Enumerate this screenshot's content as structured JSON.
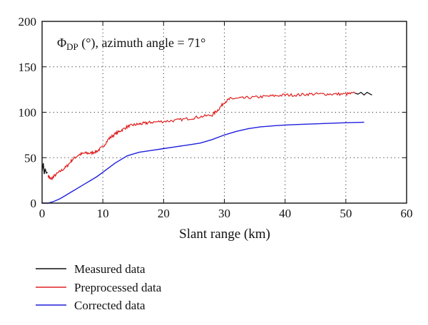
{
  "chart_data": {
    "type": "line",
    "title": "",
    "annotation": {
      "symbol": "Φ",
      "subscript": "DP",
      "rest": " (°), azimuth angle = 71°"
    },
    "xlabel": "Slant range (km)",
    "ylabel": "",
    "xlim": [
      0,
      60
    ],
    "ylim": [
      0,
      200
    ],
    "xticks": [
      "0",
      "10",
      "20",
      "30",
      "40",
      "50",
      "60"
    ],
    "yticks": [
      "0",
      "50",
      "100",
      "150",
      "200"
    ],
    "grid": "dotted",
    "legend_position": "below",
    "series": [
      {
        "name": "Measured data",
        "color": "#111111",
        "x": [
          0.0,
          0.2,
          0.35,
          0.5,
          0.7,
          0.9,
          51.5,
          52.0,
          52.5,
          53.0,
          53.5,
          54.0,
          54.3
        ],
        "y": [
          35,
          44,
          32,
          38,
          33,
          34,
          121,
          120,
          122,
          119,
          122,
          120,
          119
        ]
      },
      {
        "name": "Preprocessed data",
        "color": "#e02020",
        "x": [
          1,
          1.5,
          2,
          3,
          4,
          5,
          6,
          7,
          8,
          9,
          10,
          11,
          12,
          13,
          14,
          15,
          16,
          17,
          18,
          20,
          22,
          24,
          26,
          28,
          29,
          30,
          31,
          32,
          34,
          36,
          38,
          40,
          42,
          44,
          46,
          48,
          50,
          51.5
        ],
        "y": [
          30,
          26,
          30,
          35,
          40,
          48,
          53,
          55,
          55,
          57,
          62,
          71,
          76,
          80,
          84,
          86,
          87,
          88,
          89,
          90,
          91,
          93,
          95,
          97,
          103,
          111,
          115,
          115,
          116,
          117,
          118,
          119,
          119,
          120,
          120,
          120,
          120,
          121
        ]
      },
      {
        "name": "Corrected data",
        "color": "#1f1fdc",
        "x": [
          0,
          1,
          2,
          3,
          4,
          5,
          6,
          7,
          8,
          9,
          10,
          11,
          12,
          13,
          14,
          15,
          16,
          18,
          20,
          22,
          24,
          26,
          28,
          30,
          32,
          34,
          36,
          38,
          40,
          42,
          44,
          46,
          48,
          50,
          53
        ],
        "y": [
          0,
          0,
          2,
          5,
          9,
          13,
          17,
          21,
          25,
          29,
          34,
          39,
          44,
          48,
          52,
          54,
          56,
          58,
          60,
          62,
          64,
          66,
          70,
          75,
          79,
          82,
          84,
          85,
          86,
          86.5,
          87,
          87.5,
          88,
          88.5,
          89
        ]
      }
    ]
  }
}
